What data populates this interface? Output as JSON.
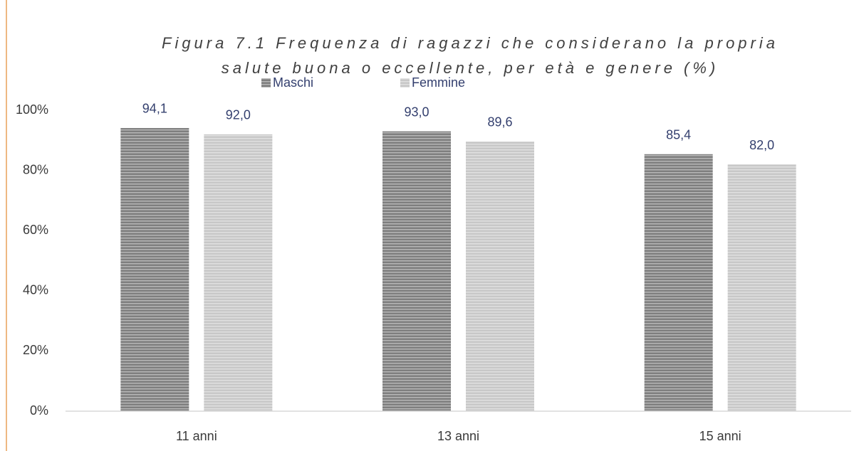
{
  "chart_data": {
    "type": "bar",
    "title": [
      "Figura 7.1 Frequenza di ragazzi che considerano la propria",
      "salute buona o eccellente, per età e genere (%)"
    ],
    "categories": [
      "11 anni",
      "13 anni",
      "15 anni"
    ],
    "series": [
      {
        "name": "Maschi",
        "color": "#7f7f7f",
        "values": [
          94.1,
          93.0,
          85.4
        ],
        "value_labels": [
          "94,1",
          "93,0",
          "85,4"
        ]
      },
      {
        "name": "Femmine",
        "color": "#c8c8c8",
        "values": [
          92.0,
          89.6,
          82.0
        ],
        "value_labels": [
          "92,0",
          "89,6",
          "82,0"
        ]
      }
    ],
    "ylim": [
      0,
      100
    ],
    "yticks": [
      {
        "value": 0,
        "label": "0%"
      },
      {
        "value": 20,
        "label": "20%"
      },
      {
        "value": 40,
        "label": "40%"
      },
      {
        "value": 60,
        "label": "60%"
      },
      {
        "value": 80,
        "label": "80%"
      },
      {
        "value": 100,
        "label": "100%"
      }
    ],
    "grid": false,
    "legend": "top"
  }
}
